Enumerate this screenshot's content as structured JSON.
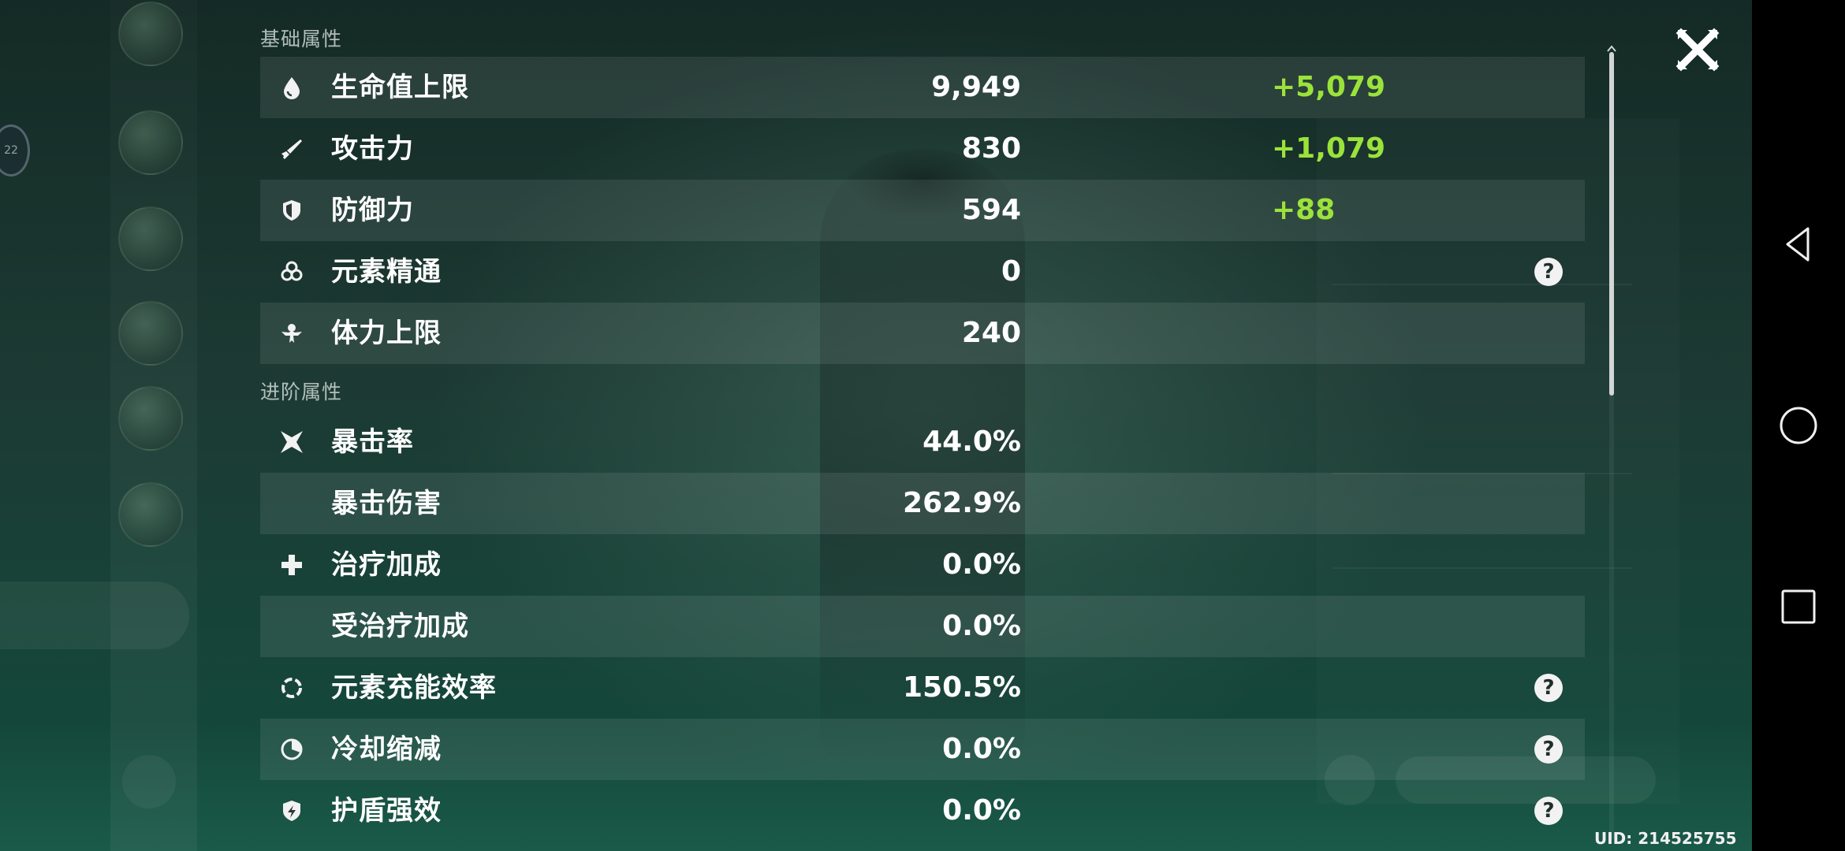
{
  "sections": {
    "basic": {
      "title": "基础属性",
      "rows": [
        {
          "icon": "water-drop-icon",
          "label": "生命值上限",
          "value": "9,949",
          "bonus": "+5,079",
          "help": false
        },
        {
          "icon": "sword-icon",
          "label": "攻击力",
          "value": "830",
          "bonus": "+1,079",
          "help": false
        },
        {
          "icon": "shield-icon",
          "label": "防御力",
          "value": "594",
          "bonus": "+88",
          "help": false
        },
        {
          "icon": "elemental-mastery-icon",
          "label": "元素精通",
          "value": "0",
          "bonus": "",
          "help": true
        },
        {
          "icon": "stamina-icon",
          "label": "体力上限",
          "value": "240",
          "bonus": "",
          "help": false
        }
      ]
    },
    "advanced": {
      "title": "进阶属性",
      "rows": [
        {
          "icon": "crit-star-icon",
          "label": "暴击率",
          "value": "44.0%",
          "bonus": "",
          "help": false
        },
        {
          "icon": "",
          "label": "暴击伤害",
          "value": "262.9%",
          "bonus": "",
          "help": false
        },
        {
          "icon": "cross-icon",
          "label": "治疗加成",
          "value": "0.0%",
          "bonus": "",
          "help": false
        },
        {
          "icon": "",
          "label": "受治疗加成",
          "value": "0.0%",
          "bonus": "",
          "help": false
        },
        {
          "icon": "energy-recharge-icon",
          "label": "元素充能效率",
          "value": "150.5%",
          "bonus": "",
          "help": true
        },
        {
          "icon": "cooldown-icon",
          "label": "冷却缩减",
          "value": "0.0%",
          "bonus": "",
          "help": true
        },
        {
          "icon": "shield-strength-icon",
          "label": "护盾强效",
          "value": "0.0%",
          "bonus": "",
          "help": true
        }
      ]
    }
  },
  "help_glyph": "?",
  "uid_text": "UID: 214525755",
  "level_badge": "22",
  "colors": {
    "bonus": "#9be33a",
    "row_shade": "rgba(255,255,255,0.085)",
    "text": "#ffffff"
  },
  "navbar": {
    "buttons": [
      "back-icon",
      "home-icon",
      "recents-icon"
    ]
  }
}
